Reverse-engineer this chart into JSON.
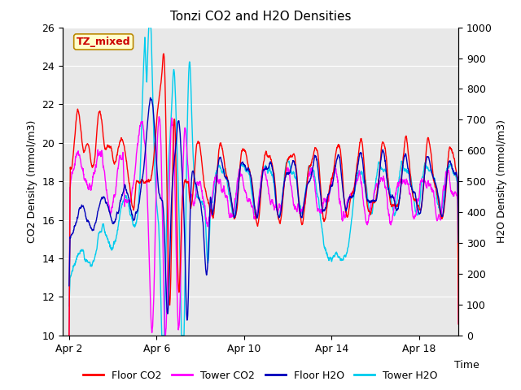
{
  "title": "Tonzi CO2 and H2O Densities",
  "xlabel": "Time",
  "ylabel_left": "CO2 Density (mmol/m3)",
  "ylabel_right": "H2O Density (mmol/m3)",
  "ylim_left": [
    10,
    26
  ],
  "ylim_right": [
    0,
    1000
  ],
  "yticks_left": [
    10,
    12,
    14,
    16,
    18,
    20,
    22,
    24,
    26
  ],
  "yticks_right": [
    0,
    100,
    200,
    300,
    400,
    500,
    600,
    700,
    800,
    900,
    1000
  ],
  "xtick_positions": [
    2,
    6,
    10,
    14,
    18
  ],
  "xtick_labels": [
    "Apr 2",
    "Apr 6",
    "Apr 10",
    "Apr 14",
    "Apr 18"
  ],
  "xlim": [
    1.7,
    19.8
  ],
  "annotation_text": "TZ_mixed",
  "annotation_color": "#cc0000",
  "annotation_bg": "#ffffcc",
  "annotation_border": "#bb8800",
  "colors": {
    "floor_co2": "#ff0000",
    "tower_co2": "#ff00ff",
    "floor_h2o": "#0000bb",
    "tower_h2o": "#00ccee"
  },
  "legend_labels": [
    "Floor CO2",
    "Tower CO2",
    "Floor H2O",
    "Tower H2O"
  ],
  "bg_color": "#e8e8e8",
  "grid_color": "#ffffff",
  "seed": 42,
  "n_points": 2000,
  "start_day": 2.0,
  "end_day": 19.8
}
